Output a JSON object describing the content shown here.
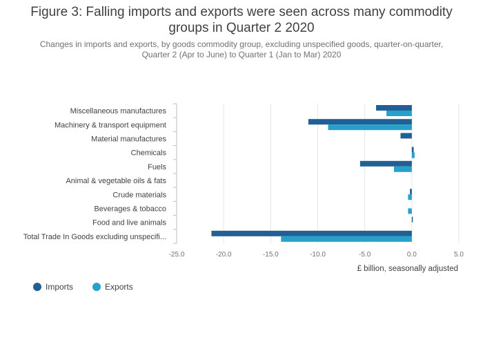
{
  "title_line1": "Figure 3: Falling imports and exports were seen across many commodity",
  "title_line2": "groups in Quarter 2 2020",
  "subtitle_line1": "Changes in imports and exports, by goods commodity group, excluding unspecified goods, quarter-on-quarter,",
  "subtitle_line2": "Quarter 2 (Apr to June) to Quarter 1 (Jan to Mar) 2020",
  "colors": {
    "imports": "#206095",
    "exports": "#27a0cc",
    "grid": "#e6e6e6",
    "axis": "#bebebe"
  },
  "chart_data": {
    "type": "bar",
    "orientation": "horizontal",
    "categories": [
      "Miscellaneous manufactures",
      "Machinery & transport equipment",
      "Material manufactures",
      "Chemicals",
      "Fuels",
      "Animal & vegetable oils & fats",
      "Crude materials",
      "Beverages & tobacco",
      "Food and live animals",
      "Total Trade In Goods excluding unspecifi..."
    ],
    "series": [
      {
        "name": "Imports",
        "values": [
          -3.8,
          -11.0,
          -1.2,
          0.2,
          -5.5,
          0.0,
          -0.2,
          0.0,
          0.1,
          -21.3
        ]
      },
      {
        "name": "Exports",
        "values": [
          -2.7,
          -8.9,
          0.0,
          0.3,
          -1.9,
          0.0,
          -0.4,
          -0.4,
          0.0,
          -13.9
        ]
      }
    ],
    "xlabel": "£ billion, seasonally adjusted",
    "xlim": [
      -25,
      5
    ],
    "ticks": [
      "-25.0",
      "-20.0",
      "-15.0",
      "-10.0",
      "-5.0",
      "0.0",
      "5.0"
    ],
    "tick_values": [
      -25,
      -20,
      -15,
      -10,
      -5,
      0,
      5
    ],
    "grid": true,
    "legend_position": "bottom-left"
  }
}
